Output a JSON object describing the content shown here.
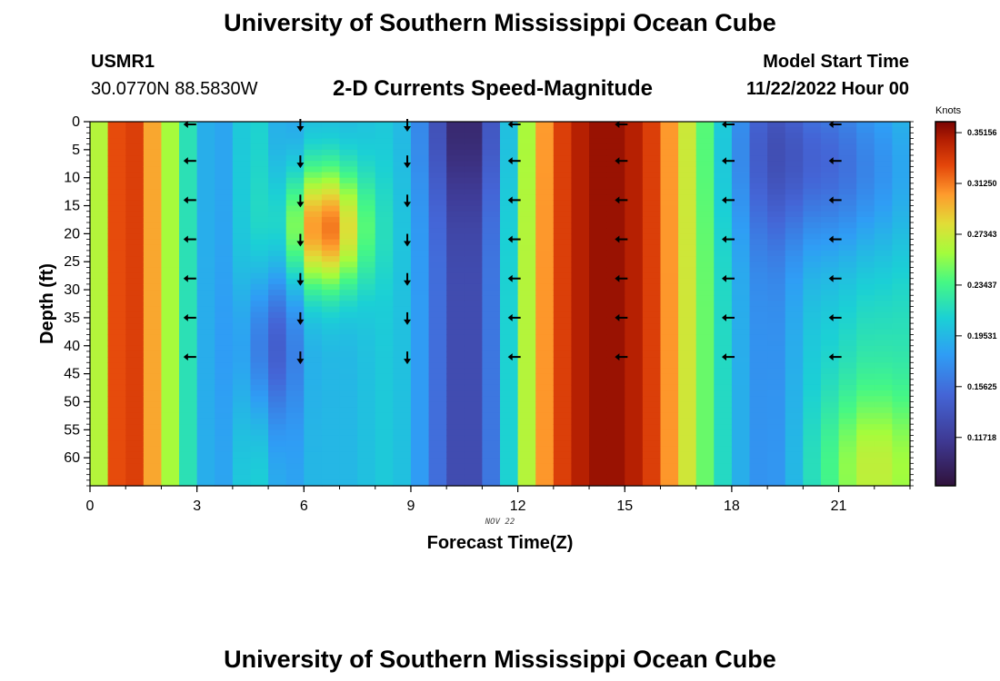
{
  "header": {
    "title": "University of Southern Mississippi Ocean Cube",
    "station_name": "USMR1",
    "station_coords": "30.0770N  88.5830W",
    "plot_title": "2-D Currents Speed-Magnitude",
    "model_start_label": "Model Start Time",
    "model_start_value": "11/22/2022 Hour 00"
  },
  "footer": {
    "title": "University of Southern Mississippi Ocean Cube"
  },
  "chart_data": {
    "type": "heatmap",
    "title": "2-D Currents Speed-Magnitude",
    "xlabel": "Forecast Time(Z)",
    "ylabel": "Depth (ft)",
    "date_label": "NOV 22",
    "xlim": [
      0,
      23
    ],
    "ylim": [
      65,
      0
    ],
    "x_ticks": [
      0,
      3,
      6,
      9,
      12,
      15,
      18,
      21
    ],
    "y_ticks": [
      0,
      5,
      10,
      15,
      20,
      25,
      30,
      35,
      40,
      45,
      50,
      55,
      60
    ],
    "colorbar": {
      "unit_label": "Knots",
      "range": [
        0.08,
        0.36
      ],
      "tick_values": [
        0.35156,
        0.3125,
        0.27343,
        0.23437,
        0.19531,
        0.15625,
        0.11718
      ],
      "tick_labels": [
        "0.35156",
        "0.31250",
        "0.27343",
        "0.23437",
        "0.19531",
        "0.15625",
        "0.11718"
      ]
    },
    "speed_profile_hours": [
      0,
      0.5,
      1,
      1.5,
      2,
      2.5,
      3,
      3.5,
      4,
      4.5,
      5,
      5.5,
      6,
      6.5,
      7,
      7.5,
      8,
      8.5,
      9,
      9.5,
      10,
      10.5,
      11,
      11.5,
      12,
      12.5,
      13,
      13.5,
      14,
      14.5,
      15,
      15.5,
      16,
      16.5,
      17,
      17.5,
      18,
      18.5,
      19,
      19.5,
      20,
      20.5,
      21,
      21.5,
      22,
      22.5,
      23
    ],
    "speed_profile_knots": [
      0.22,
      0.31,
      0.34,
      0.32,
      0.28,
      0.24,
      0.2,
      0.18,
      0.19,
      0.22,
      0.2,
      0.18,
      0.19,
      0.2,
      0.19,
      0.2,
      0.2,
      0.21,
      0.19,
      0.17,
      0.14,
      0.12,
      0.14,
      0.18,
      0.24,
      0.29,
      0.32,
      0.34,
      0.35,
      0.355,
      0.35,
      0.34,
      0.32,
      0.29,
      0.26,
      0.23,
      0.2,
      0.18,
      0.17,
      0.18,
      0.2,
      0.21,
      0.21,
      0.22,
      0.22,
      0.22,
      0.22
    ],
    "vector_hours": [
      2.8,
      5.9,
      8.9,
      11.9,
      14.9,
      17.9,
      20.9
    ],
    "vector_depths_ft": [
      0,
      7,
      14,
      21,
      28,
      35,
      42
    ],
    "vector_directions": [
      "W",
      "S",
      "S",
      "W",
      "W",
      "W",
      "W"
    ]
  }
}
